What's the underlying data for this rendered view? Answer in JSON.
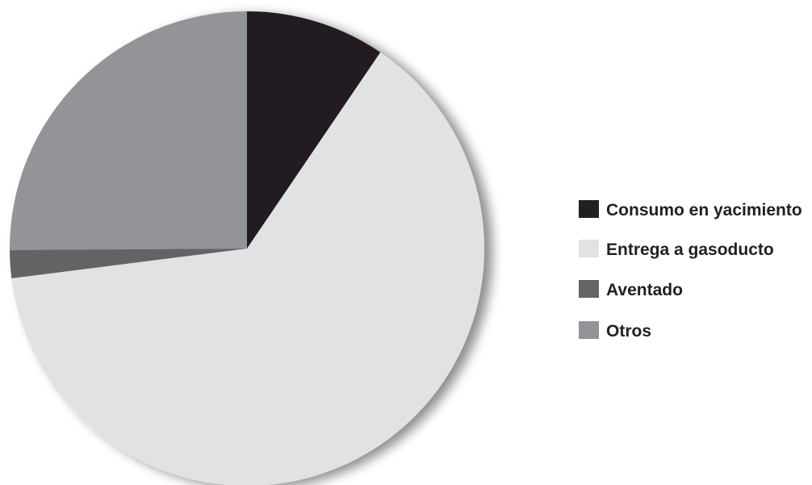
{
  "chart_data": {
    "type": "pie",
    "title": "",
    "start_angle_deg": 0,
    "direction": "clockwise",
    "legend": "right",
    "slices": [
      {
        "label": "Consumo en yacimiento",
        "value": 9.5,
        "color": "#231f20"
      },
      {
        "label": "Entrega a gasoducto",
        "value": 63.5,
        "color": "#e1e2e4"
      },
      {
        "label": "Aventado",
        "value": 1.9,
        "color": "#636466"
      },
      {
        "label": "Otros",
        "value": 25.1,
        "color": "#929497"
      }
    ]
  }
}
